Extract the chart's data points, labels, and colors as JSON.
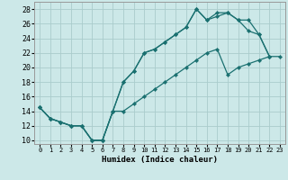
{
  "xlabel": "Humidex (Indice chaleur)",
  "bg_color": "#cce8e8",
  "grid_color": "#aacccc",
  "line_color": "#1a7070",
  "xlim": [
    -0.5,
    23.5
  ],
  "ylim": [
    9.5,
    29
  ],
  "xticks": [
    0,
    1,
    2,
    3,
    4,
    5,
    6,
    7,
    8,
    9,
    10,
    11,
    12,
    13,
    14,
    15,
    16,
    17,
    18,
    19,
    20,
    21,
    22,
    23
  ],
  "yticks": [
    10,
    12,
    14,
    16,
    18,
    20,
    22,
    24,
    26,
    28
  ],
  "line1_x": [
    0,
    1,
    2,
    3,
    4,
    5,
    6,
    7,
    8,
    9,
    10,
    11,
    12,
    13,
    14,
    15,
    16,
    17,
    18,
    19,
    20,
    21,
    22
  ],
  "line1_y": [
    14.5,
    13,
    12.5,
    12,
    12,
    10,
    10,
    14,
    18,
    19.5,
    22,
    22.5,
    23.5,
    24.5,
    25.5,
    28,
    26.5,
    27.5,
    27.5,
    26.5,
    26.5,
    24.5,
    21.5
  ],
  "line2_x": [
    0,
    1,
    2,
    3,
    4,
    5,
    6,
    7,
    8,
    9,
    10,
    11,
    12,
    13,
    14,
    15,
    16,
    17,
    18,
    19,
    20,
    21,
    22
  ],
  "line2_y": [
    14.5,
    13,
    12.5,
    12,
    12,
    10,
    10,
    14,
    18,
    19.5,
    22,
    22.5,
    23.5,
    24.5,
    25.5,
    28,
    26.5,
    27.0,
    27.5,
    26.5,
    25.0,
    24.5,
    21.5
  ],
  "line3_x": [
    0,
    1,
    2,
    3,
    4,
    5,
    6,
    7,
    8,
    9,
    10,
    11,
    12,
    13,
    14,
    15,
    16,
    17,
    18,
    19,
    20,
    21,
    22,
    23
  ],
  "line3_y": [
    14.5,
    13,
    12.5,
    12,
    12,
    10,
    10,
    14,
    14,
    15,
    16,
    17,
    18,
    19,
    20,
    21,
    22,
    22.5,
    19,
    20,
    20.5,
    21,
    21.5,
    21.5
  ]
}
